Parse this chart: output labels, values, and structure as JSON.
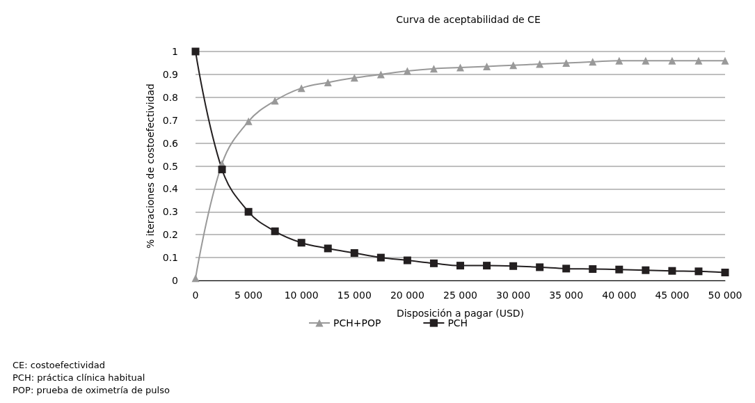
{
  "chart_data": {
    "type": "line",
    "title": "Curva de aceptabilidad de CE",
    "xlabel": "Disposición a pagar (USD)",
    "ylabel": "% iteraciones de costoefectividad",
    "x": [
      0,
      2500,
      5000,
      7500,
      10000,
      12500,
      15000,
      17500,
      20000,
      22500,
      25000,
      27500,
      30000,
      32500,
      35000,
      37500,
      40000,
      42500,
      45000,
      47500,
      50000
    ],
    "series": [
      {
        "name": "PCH+POP",
        "color": "#999999",
        "marker": "triangle",
        "values": [
          0.01,
          0.51,
          0.695,
          0.785,
          0.84,
          0.865,
          0.885,
          0.9,
          0.915,
          0.925,
          0.93,
          0.935,
          0.94,
          0.945,
          0.95,
          0.955,
          0.96,
          0.96,
          0.96,
          0.96,
          0.96
        ]
      },
      {
        "name": "PCH",
        "color": "#231f20",
        "marker": "square",
        "values": [
          1,
          0.485,
          0.3,
          0.215,
          0.165,
          0.14,
          0.12,
          0.1,
          0.088,
          0.075,
          0.065,
          0.065,
          0.063,
          0.058,
          0.052,
          0.05,
          0.048,
          0.045,
          0.042,
          0.04,
          0.035
        ]
      }
    ],
    "xlim": [
      0,
      50000
    ],
    "xticks": [
      0,
      {
        "value": 5000,
        "label": "5 000"
      },
      {
        "value": 10000,
        "label": "10 000"
      },
      {
        "value": 15000,
        "label": "15 000"
      },
      {
        "value": 20000,
        "label": "20 000"
      },
      {
        "value": 25000,
        "label": "25 000"
      },
      {
        "value": 30000,
        "label": "30 000"
      },
      {
        "value": 35000,
        "label": "35 000"
      },
      {
        "value": 40000,
        "label": "40 000"
      },
      {
        "value": 45000,
        "label": "45 000"
      },
      {
        "value": 50000,
        "label": "50 000"
      }
    ],
    "ylim": [
      0,
      1
    ],
    "yticks": [
      0,
      0.1,
      0.2,
      0.3,
      0.4,
      0.5,
      0.6,
      0.7,
      0.8,
      0.9,
      1
    ],
    "grid": "y",
    "legend": "bottom",
    "annotations": [
      "CE: costoefectividad",
      "PCH: práctica clínica habitual",
      "POP: prueba de oximetría de pulso"
    ]
  }
}
